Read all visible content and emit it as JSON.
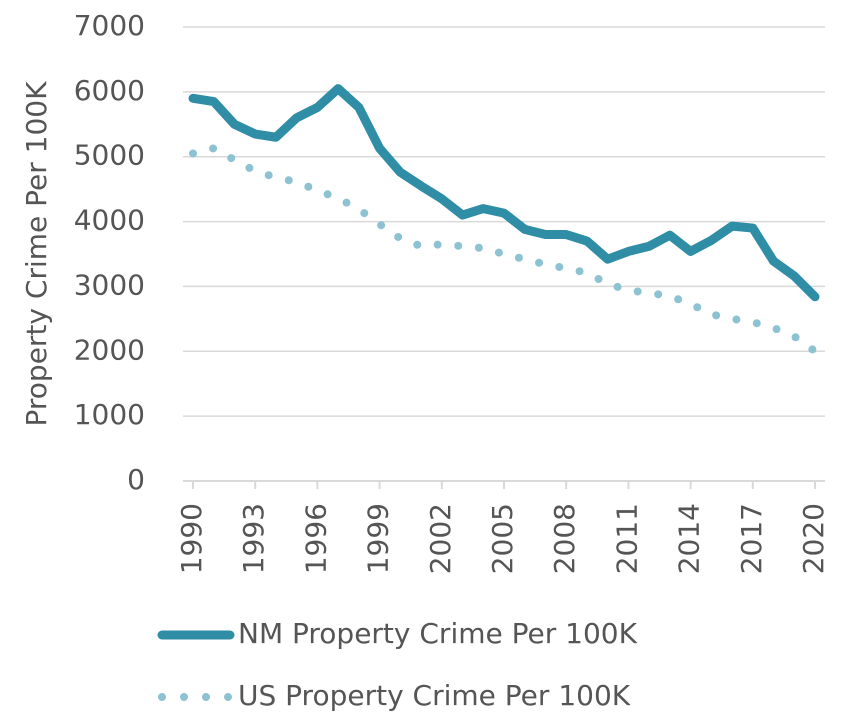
{
  "chart_data": {
    "type": "line",
    "y_label": "Property Crime Per 100K",
    "x": [
      1990,
      1991,
      1992,
      1993,
      1994,
      1995,
      1996,
      1997,
      1998,
      1999,
      2000,
      2001,
      2002,
      2003,
      2004,
      2005,
      2006,
      2007,
      2008,
      2009,
      2010,
      2011,
      2012,
      2013,
      2014,
      2015,
      2016,
      2017,
      2018,
      2019,
      2020
    ],
    "xlim": [
      1990,
      2020
    ],
    "xticks": [
      1990,
      1993,
      1996,
      1999,
      2002,
      2005,
      2008,
      2011,
      2014,
      2017,
      2020
    ],
    "ylim": [
      0,
      7000
    ],
    "yticks": [
      0,
      1000,
      2000,
      3000,
      4000,
      5000,
      6000,
      7000
    ],
    "grid": true,
    "legend": "bottom",
    "series": [
      {
        "name": "NM Property Crime Per 100K",
        "color": "#2f8ea6",
        "style": "solid",
        "values": [
          5900,
          5850,
          5500,
          5350,
          5300,
          5600,
          5760,
          6050,
          5760,
          5130,
          4760,
          4550,
          4350,
          4100,
          4200,
          4130,
          3880,
          3800,
          3800,
          3700,
          3420,
          3540,
          3620,
          3790,
          3540,
          3710,
          3930,
          3900,
          3390,
          3160,
          2840
        ]
      },
      {
        "name": "US Property Crime Per 100K",
        "color": "#8cc2d1",
        "style": "dotted",
        "values": [
          5050,
          5130,
          4950,
          4780,
          4680,
          4610,
          4480,
          4360,
          4190,
          3960,
          3740,
          3620,
          3650,
          3620,
          3590,
          3500,
          3420,
          3340,
          3280,
          3210,
          3040,
          2940,
          2900,
          2850,
          2730,
          2570,
          2500,
          2450,
          2360,
          2230,
          2000
        ]
      }
    ]
  }
}
